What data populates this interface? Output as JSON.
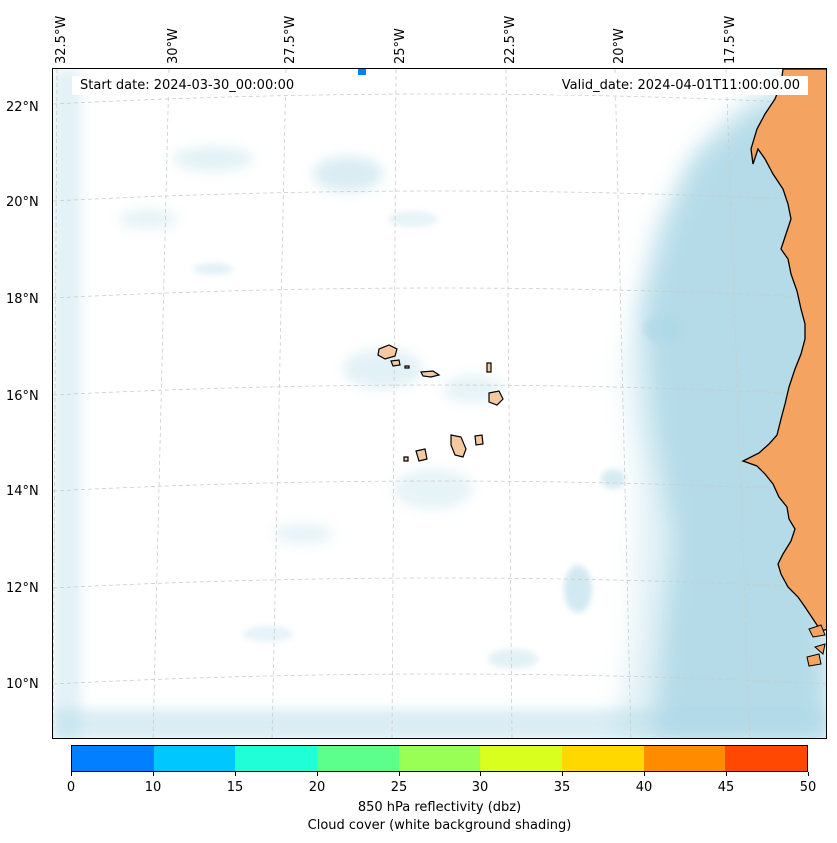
{
  "header": {
    "start_date": "Start date: 2024-03-30_00:00:00",
    "valid_date": "Valid_date: 2024-04-01T11:00:00.00"
  },
  "map": {
    "lon_labels": [
      "32.5°W",
      "30°W",
      "27.5°W",
      "25°W",
      "22.5°W",
      "20°W",
      "17.5°W"
    ],
    "lat_labels": [
      "22°N",
      "20°N",
      "18°N",
      "16°N",
      "14°N",
      "12°N",
      "10°N"
    ],
    "land_color": "#f4a460",
    "cloud_color": "#add8e6",
    "coastline_color": "#000000",
    "gridline_style": "dashed light gray"
  },
  "colorbar": {
    "ticks": [
      "0",
      "10",
      "15",
      "20",
      "25",
      "30",
      "35",
      "40",
      "45",
      "50"
    ],
    "colors": [
      "#0080ff",
      "#00c8ff",
      "#1effd8",
      "#5cff8c",
      "#99ff55",
      "#d8ff1e",
      "#ffd800",
      "#ff8c00",
      "#ff4800"
    ],
    "label": "850 hPa reflectivity (dbz)",
    "sublabel": "Cloud cover (white background shading)"
  }
}
